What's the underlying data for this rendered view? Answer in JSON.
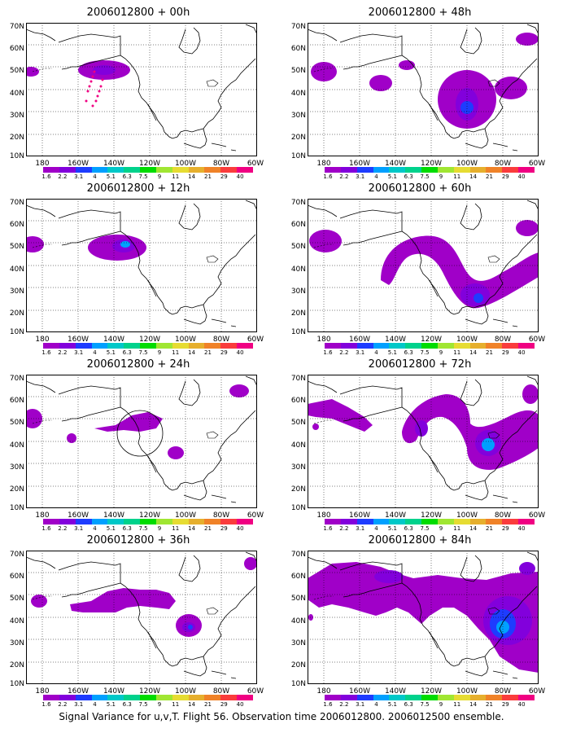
{
  "caption": "Signal Variance for u,v,T. Flight 56. Observation time 2006012800. 2006012500 ensemble.",
  "y_labels": [
    "70N",
    "60N",
    "50N",
    "40N",
    "30N",
    "20N",
    "10N"
  ],
  "x_labels": [
    "180",
    "160W",
    "140W",
    "120W",
    "100W",
    "80W",
    "60W"
  ],
  "color_scale": {
    "labels": [
      "1.6",
      "2.2",
      "3.1",
      "4",
      "5.1",
      "6.3",
      "7.5",
      "9",
      "11",
      "14",
      "21",
      "29",
      "40"
    ],
    "colors": [
      "#a000c8",
      "#8200dc",
      "#1e3cff",
      "#00a0ff",
      "#00c8c8",
      "#00d28c",
      "#00dc00",
      "#a0e632",
      "#e6dc32",
      "#e6af2d",
      "#f08228",
      "#fa3c3c",
      "#f00082"
    ]
  },
  "panels": [
    {
      "title": "2006012800 + 00h"
    },
    {
      "title": "2006012800 + 48h"
    },
    {
      "title": "2006012800 + 12h"
    },
    {
      "title": "2006012800 + 60h"
    },
    {
      "title": "2006012800 + 24h"
    },
    {
      "title": "2006012800 + 72h"
    },
    {
      "title": "2006012800 + 36h"
    },
    {
      "title": "2006012800 + 84h"
    }
  ]
}
